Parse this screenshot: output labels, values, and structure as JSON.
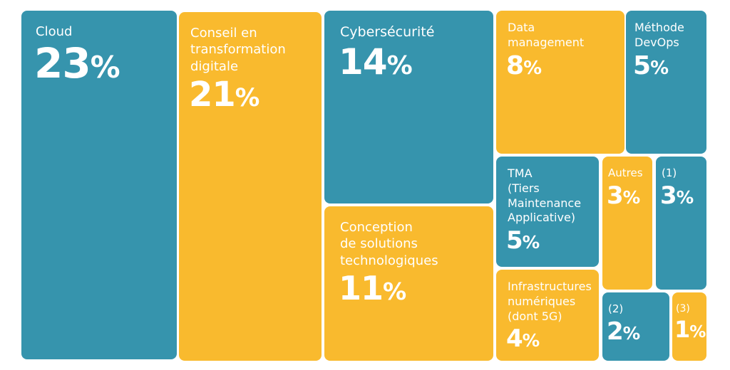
{
  "colors": {
    "teal": "#3694ad",
    "yellow": "#f9ba2e"
  },
  "chart_data": {
    "type": "treemap",
    "unit": "%",
    "items": [
      {
        "label": "Cloud",
        "value": 23,
        "value_text": "23",
        "color": "teal"
      },
      {
        "label": "Conseil en\ntransformation\ndigitale",
        "value": 21,
        "value_text": "21",
        "color": "yellow"
      },
      {
        "label": "Cybersécurité",
        "value": 14,
        "value_text": "14",
        "color": "teal"
      },
      {
        "label": "Conception\nde solutions\ntechnologiques",
        "value": 11,
        "value_text": "11",
        "color": "yellow"
      },
      {
        "label": "Data\nmanagement",
        "value": 8,
        "value_text": "8",
        "color": "yellow"
      },
      {
        "label": "Méthode\nDevOps",
        "value": 5,
        "value_text": "5",
        "color": "teal"
      },
      {
        "label": "TMA\n(Tiers\nMaintenance\nApplicative)",
        "value": 5,
        "value_text": "5",
        "color": "teal"
      },
      {
        "label": "Autres",
        "value": 3,
        "value_text": "3",
        "color": "yellow"
      },
      {
        "label": "(1)",
        "value": 3,
        "value_text": "3",
        "color": "teal"
      },
      {
        "label": "Infrastructures\nnumériques\n(dont 5G)",
        "value": 4,
        "value_text": "4",
        "color": "yellow"
      },
      {
        "label": "(2)",
        "value": 2,
        "value_text": "2",
        "color": "teal"
      },
      {
        "label": "(3)",
        "value": 1,
        "value_text": "1",
        "color": "yellow"
      }
    ]
  }
}
